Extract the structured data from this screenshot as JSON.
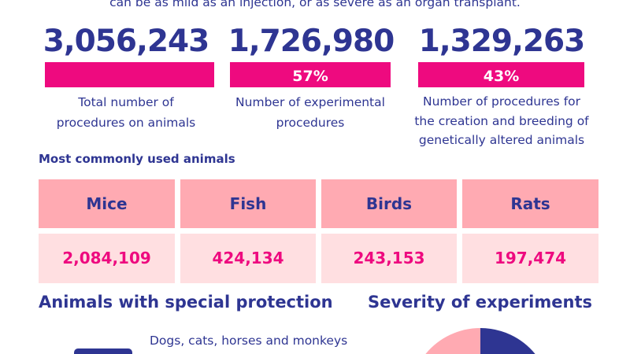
{
  "intro": "can be as mild as an injection, or as severe as an organ transplant.",
  "stats": [
    {
      "value": "3,056,243",
      "percent": "",
      "label_lines": [
        "Total number of",
        "procedures on animals"
      ]
    },
    {
      "value": "1,726,980",
      "percent": "57%",
      "label_lines": [
        "Number of experimental",
        "procedures"
      ]
    },
    {
      "value": "1,329,263",
      "percent": "43%",
      "label_lines": [
        "Number of procedures for",
        "the creation and breeding of",
        "genetically altered animals"
      ]
    }
  ],
  "animals": {
    "title": "Most commonly used animals",
    "items": [
      {
        "name": "Mice",
        "count": "2,084,109"
      },
      {
        "name": "Fish",
        "count": "424,134"
      },
      {
        "name": "Birds",
        "count": "243,153"
      },
      {
        "name": "Rats",
        "count": "197,474"
      }
    ]
  },
  "protection": {
    "title": "Animals with special protection",
    "text": "Dogs, cats, horses and monkeys"
  },
  "severity": {
    "title": "Severity of experiments"
  },
  "colors": {
    "navy": "#2e3592",
    "pink": "#ee0a7f",
    "header_pink": "#ffaab2",
    "value_pink": "#ffdfe1"
  }
}
